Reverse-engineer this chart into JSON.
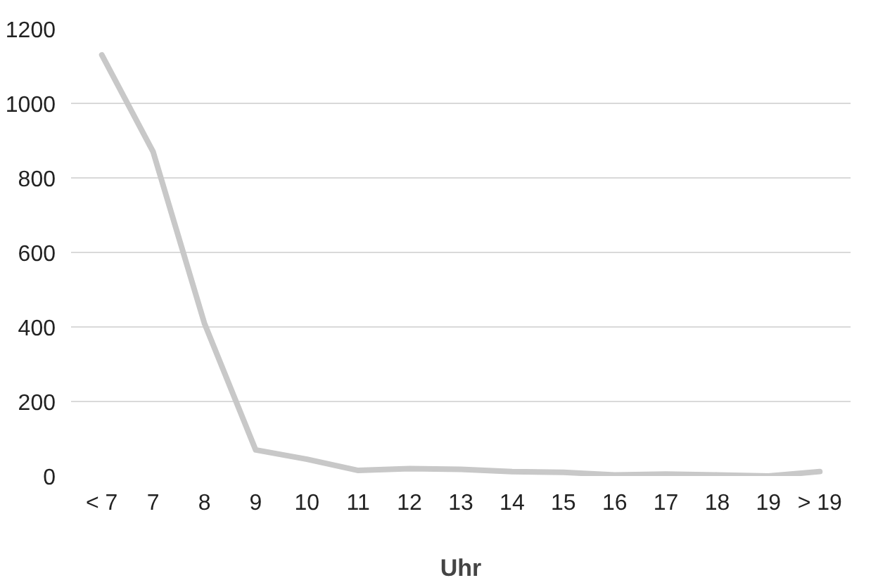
{
  "chart_data": {
    "type": "line",
    "xlabel": "Uhr",
    "categories": [
      "< 7",
      "7",
      "8",
      "9",
      "10",
      "11",
      "12",
      "13",
      "14",
      "15",
      "16",
      "17",
      "18",
      "19",
      "> 19"
    ],
    "series": [
      {
        "color": "#c8c8c8",
        "values": [
          1130,
          870,
          410,
          70,
          45,
          15,
          20,
          18,
          12,
          10,
          3,
          5,
          3,
          0,
          12
        ]
      }
    ],
    "ylim": [
      0,
      1200
    ],
    "yticks": [
      0,
      200,
      400,
      600,
      800,
      1000,
      1200
    ],
    "grid": "y",
    "marker": "none",
    "line_style": "solid"
  }
}
